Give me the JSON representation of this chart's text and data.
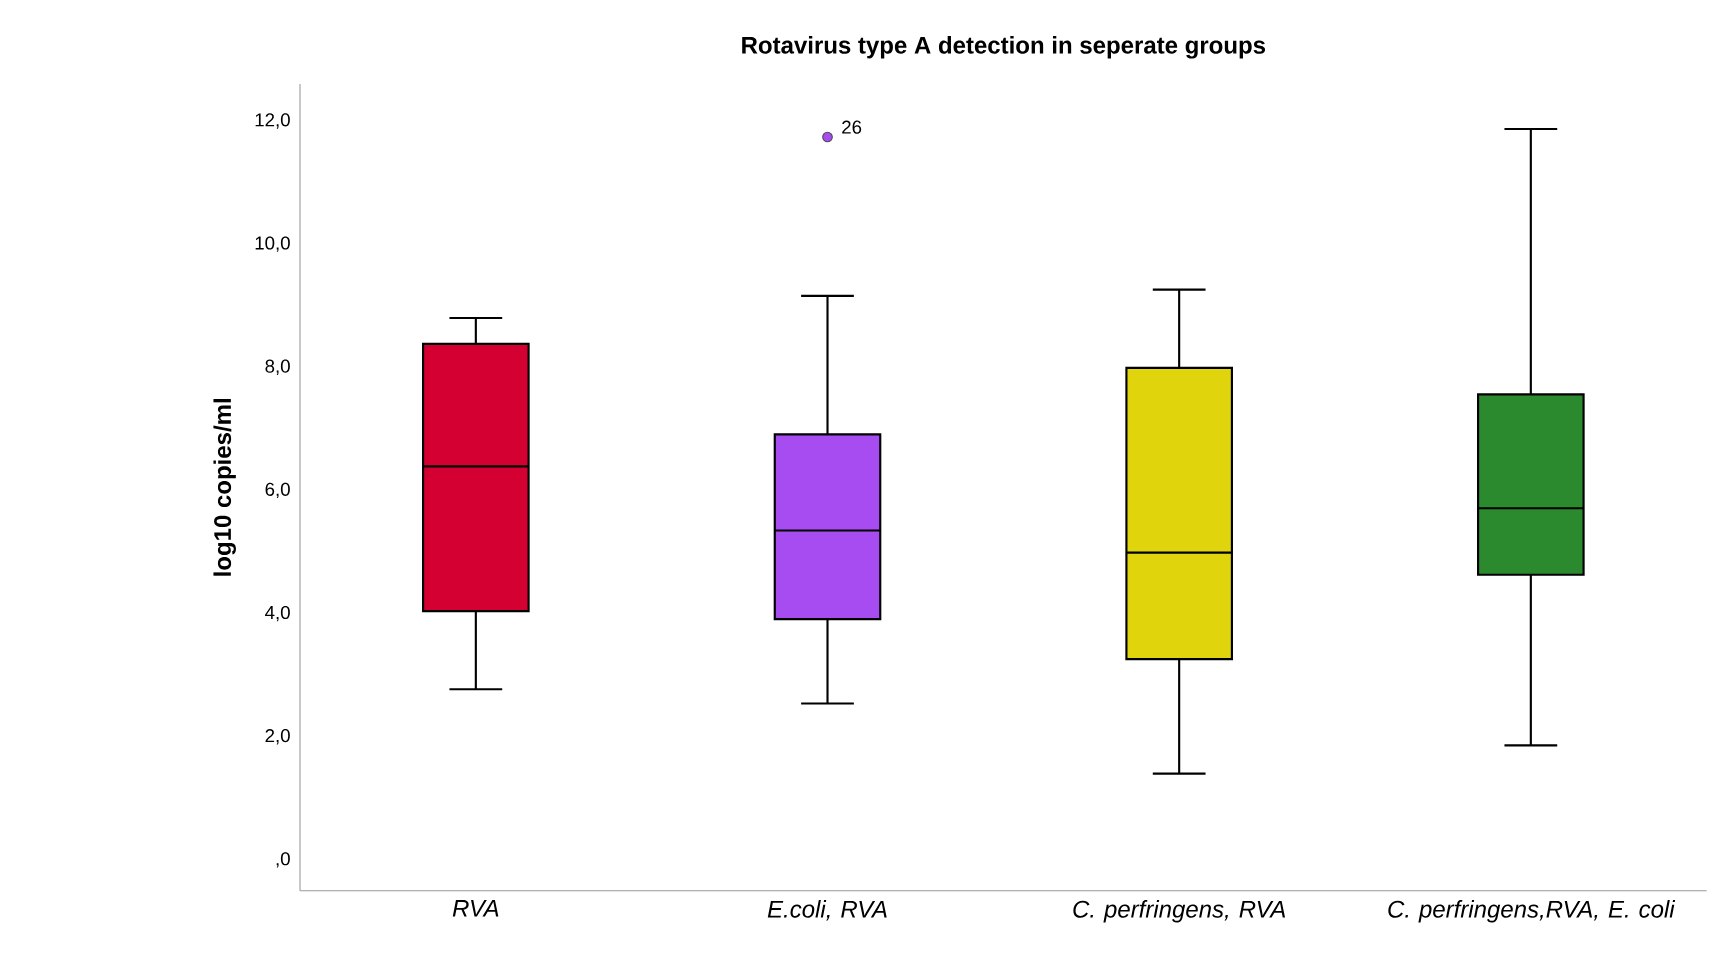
{
  "chart_data": {
    "type": "box",
    "title": "Rotavirus type A detection in seperate groups",
    "ylabel": "log10 copies/ml",
    "categories": [
      "RVA",
      "E.coli, RVA",
      "C. perfringens, RVA",
      "C. perfringens,RVA, E. coli"
    ],
    "colors": [
      "#d50032",
      "#a64cf0",
      "#e0d50c",
      "#2b8a2e"
    ],
    "boxes": [
      {
        "low": 2.77,
        "q1": 4.04,
        "median": 6.39,
        "q3": 8.38,
        "high": 8.8
      },
      {
        "low": 2.54,
        "q1": 3.91,
        "median": 5.35,
        "q3": 6.91,
        "high": 9.16,
        "outliers": [
          11.74
        ]
      },
      {
        "low": 1.4,
        "q1": 3.26,
        "median": 4.99,
        "q3": 7.99,
        "high": 9.26
      },
      {
        "low": 1.86,
        "q1": 4.63,
        "median": 5.71,
        "q3": 7.56,
        "high": 11.87
      }
    ],
    "ylim": [
      -0.5,
      12.6
    ],
    "yticks": [
      {
        "value": 0,
        "label": ",0"
      },
      {
        "value": 2,
        "label": "2,0"
      },
      {
        "value": 4,
        "label": "4,0"
      },
      {
        "value": 6,
        "label": "6,0"
      },
      {
        "value": 8,
        "label": "8,0"
      },
      {
        "value": 10,
        "label": "10,0"
      },
      {
        "value": 12,
        "label": "12,0"
      }
    ],
    "marker": "circle",
    "grid": false,
    "annotations": [
      "26"
    ]
  }
}
